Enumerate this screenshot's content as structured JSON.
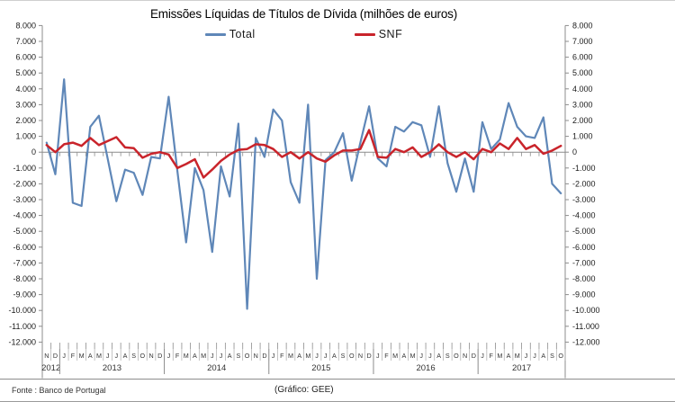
{
  "title": "Emissões Líquidas de Títulos de Dívida (milhões de euros)",
  "footer": {
    "source": "Fonte : Banco de Portugal",
    "credit": "(Gráfico: GEE)"
  },
  "chart_data": {
    "type": "line",
    "title": "Emissões Líquidas de Títulos de Dívida (milhões de euros)",
    "ylabel": "",
    "xlabel": "",
    "ylim": [
      -12000,
      8000
    ],
    "ystep": 1000,
    "ytick_labels": [
      "8.000",
      "7.000",
      "6.000",
      "5.000",
      "4.000",
      "3.000",
      "2.000",
      "1.000",
      "0",
      "-1.000",
      "-2.000",
      "-3.000",
      "-4.000",
      "-5.000",
      "-6.000",
      "-7.000",
      "-8.000",
      "-9.000",
      "-10.000",
      "-11.000",
      "-12.000"
    ],
    "gridlines": "zero-only",
    "legend_position": "top-center",
    "months": [
      "N",
      "D",
      "J",
      "F",
      "M",
      "A",
      "M",
      "J",
      "J",
      "A",
      "S",
      "O",
      "N",
      "D",
      "J",
      "F",
      "M",
      "A",
      "M",
      "J",
      "J",
      "A",
      "S",
      "O",
      "N",
      "D",
      "J",
      "F",
      "M",
      "A",
      "M",
      "J",
      "J",
      "A",
      "S",
      "O",
      "N",
      "D",
      "J",
      "F",
      "M",
      "A",
      "M",
      "J",
      "J",
      "A",
      "S",
      "O",
      "N",
      "D",
      "J",
      "F",
      "M",
      "A",
      "M",
      "J",
      "J",
      "A",
      "S",
      "O"
    ],
    "year_groups": [
      {
        "label": "2012",
        "count": 2
      },
      {
        "label": "2013",
        "count": 12
      },
      {
        "label": "2014",
        "count": 12
      },
      {
        "label": "2015",
        "count": 12
      },
      {
        "label": "2016",
        "count": 12
      },
      {
        "label": "2017",
        "count": 10
      }
    ],
    "series": [
      {
        "name": "Total",
        "color": "#5f87b8",
        "values": [
          600,
          -1400,
          4600,
          -3200,
          -3400,
          1600,
          2300,
          -400,
          -3100,
          -1100,
          -1300,
          -2700,
          -300,
          -400,
          3500,
          -1200,
          -5700,
          -1000,
          -2400,
          -6300,
          -900,
          -2800,
          1800,
          -9900,
          900,
          -300,
          2700,
          2000,
          -1900,
          -3200,
          3000,
          -8000,
          -500,
          0,
          1200,
          -1800,
          600,
          2900,
          -400,
          -900,
          1600,
          1300,
          1900,
          1700,
          -300,
          2900,
          -700,
          -2500,
          -400,
          -2500,
          1900,
          200,
          800,
          3100,
          1600,
          1000,
          900,
          2200,
          -2000,
          -2600
        ]
      },
      {
        "name": "SNF",
        "color": "#c9242b",
        "values": [
          450,
          0,
          500,
          600,
          400,
          900,
          450,
          700,
          950,
          300,
          250,
          -350,
          -100,
          0,
          -150,
          -1000,
          -750,
          -450,
          -1600,
          -1100,
          -550,
          -150,
          150,
          200,
          500,
          450,
          200,
          -300,
          0,
          -400,
          0,
          -400,
          -600,
          -200,
          100,
          100,
          200,
          1400,
          -300,
          -350,
          200,
          0,
          300,
          -300,
          0,
          500,
          0,
          -300,
          0,
          -450,
          200,
          0,
          550,
          200,
          900,
          200,
          450,
          -100,
          100,
          400
        ]
      }
    ]
  }
}
